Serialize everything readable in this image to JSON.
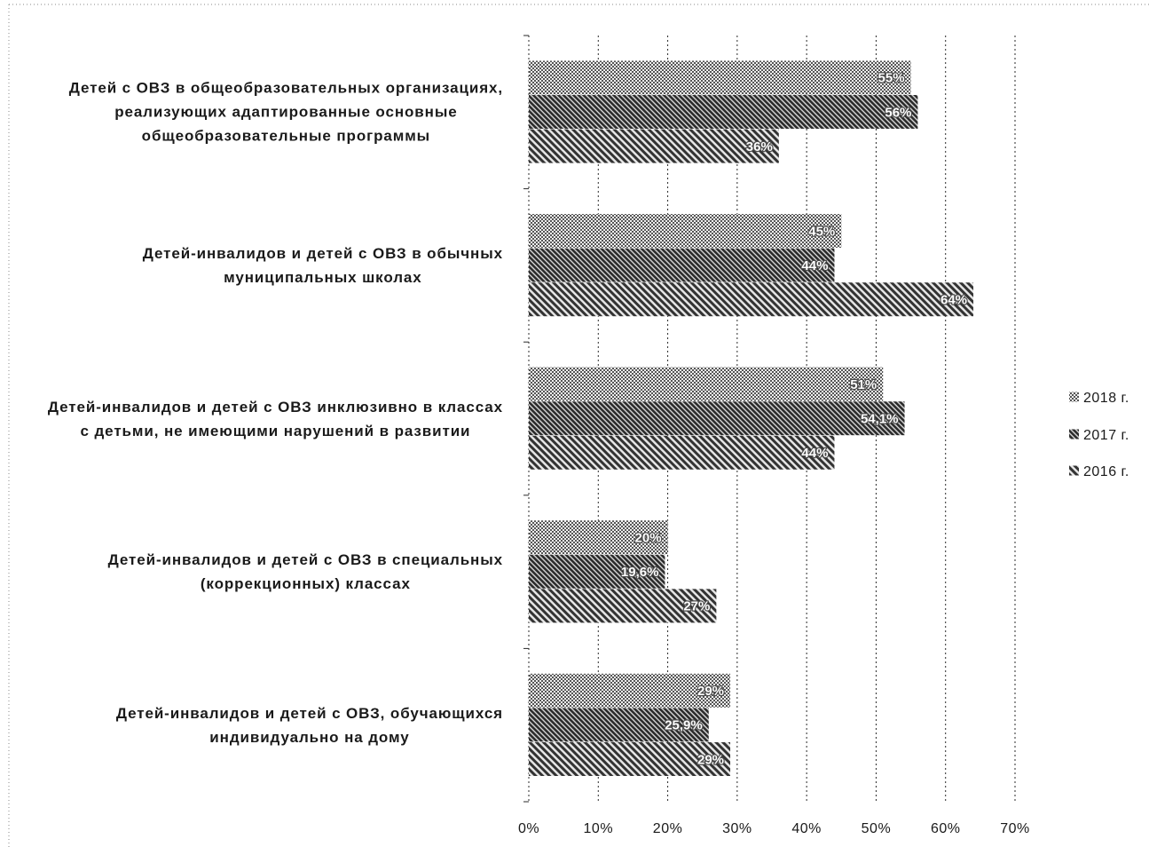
{
  "chart_data": {
    "type": "bar",
    "horizontal": true,
    "categories": [
      "Детей с ОВЗ в общеобразовательных организациях,\nреализующих адаптированные основные\nобщеобразовательные программы",
      "Детей-инвалидов и детей с ОВЗ в обычных\nмуниципальных школах",
      "Детей-инвалидов и детей с ОВЗ инклюзивно в классах\nс детьми, не имеющими нарушений в развитии",
      "Детей-инвалидов и детей с ОВЗ в специальных\n(коррекционных) классах",
      "Детей-инвалидов и детей с ОВЗ, обучающихся\nиндивидуально на дому"
    ],
    "series": [
      {
        "name": "2018 г.",
        "values": [
          55,
          45,
          51,
          20,
          29
        ],
        "labels": [
          "55%",
          "45%",
          "51%",
          "20%",
          "29%"
        ]
      },
      {
        "name": "2017 г.",
        "values": [
          56,
          44,
          54.1,
          19.6,
          25.9
        ],
        "labels": [
          "56%",
          "44%",
          "54,1%",
          "19,6%",
          "25,9%"
        ]
      },
      {
        "name": "2016 г.",
        "values": [
          36,
          64,
          44,
          27,
          29
        ],
        "labels": [
          "36%",
          "64%",
          "44%",
          "27%",
          "29%"
        ]
      }
    ],
    "x_ticks": [
      "0%",
      "10%",
      "20%",
      "30%",
      "40%",
      "50%",
      "60%",
      "70%"
    ],
    "xlim": [
      0,
      70
    ],
    "grid": true,
    "legend_position": "right"
  }
}
